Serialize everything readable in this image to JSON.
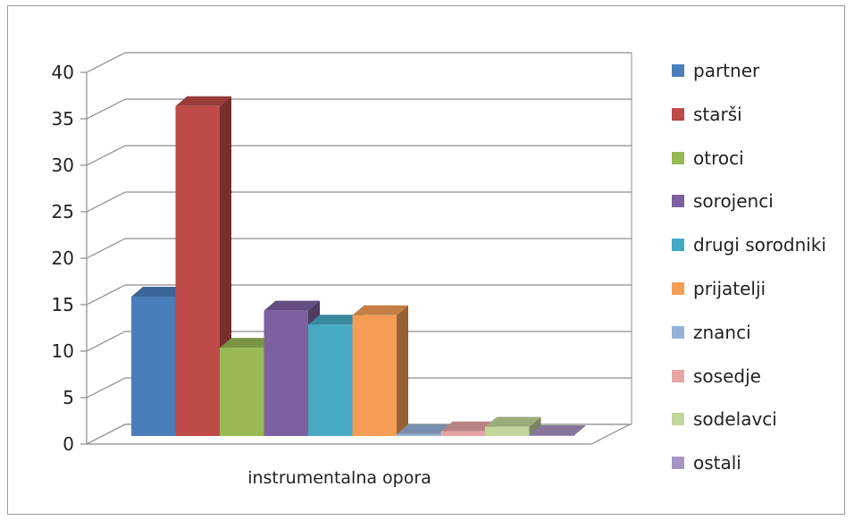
{
  "chart_data": {
    "type": "bar",
    "categories": [
      "instrumentalna opora"
    ],
    "series": [
      {
        "name": "partner",
        "values": [
          15
        ],
        "color": "#4a7ebb"
      },
      {
        "name": "starši",
        "values": [
          35.5
        ],
        "color": "#be4b48"
      },
      {
        "name": "otroci",
        "values": [
          9.5
        ],
        "color": "#98b954"
      },
      {
        "name": "sorojenci",
        "values": [
          13.5
        ],
        "color": "#7d60a0"
      },
      {
        "name": "drugi sorodniki",
        "values": [
          12
        ],
        "color": "#46aac5"
      },
      {
        "name": "prijatelji",
        "values": [
          13
        ],
        "color": "#f59d56"
      },
      {
        "name": "znanci",
        "values": [
          0.2
        ],
        "color": "#95b3d7"
      },
      {
        "name": "sosedje",
        "values": [
          0.5
        ],
        "color": "#e6a5a4"
      },
      {
        "name": "sodelavci",
        "values": [
          1
        ],
        "color": "#c3d69b"
      },
      {
        "name": "ostali",
        "values": [
          0.1
        ],
        "color": "#a894c4"
      }
    ],
    "y_ticks": [
      "0",
      "5",
      "10",
      "15",
      "20",
      "25",
      "30",
      "35",
      "40"
    ],
    "ylim": [
      0,
      40
    ],
    "title": "",
    "xlabel": "",
    "ylabel": "",
    "grid": true,
    "legend_position": "right",
    "projection": "3d"
  }
}
